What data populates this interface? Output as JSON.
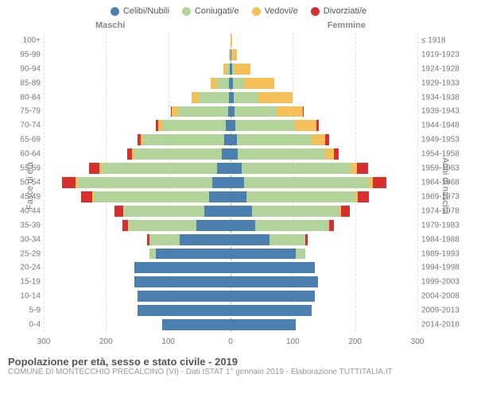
{
  "chart": {
    "type": "population-pyramid",
    "title": "Popolazione per età, sesso e stato civile - 2019",
    "subtitle": "COMUNE DI MONTECCHIO PRECALCINO (VI) - Dati ISTAT 1° gennaio 2019 - Elaborazione TUTTITALIA.IT",
    "male_label": "Maschi",
    "female_label": "Femmine",
    "y_title_left": "Fasce di età",
    "y_title_right": "Anni di nascita",
    "x_max": 300,
    "x_ticks": [
      300,
      200,
      100,
      0,
      100,
      200,
      300
    ],
    "legend": [
      {
        "label": "Celibi/Nubili",
        "color": "#4a7fb0"
      },
      {
        "label": "Coniugati/e",
        "color": "#b2d49a"
      },
      {
        "label": "Vedovi/e",
        "color": "#f5c05a"
      },
      {
        "label": "Divorziati/e",
        "color": "#d92e2e"
      }
    ],
    "colors": {
      "single": "#4a7fb0",
      "married": "#b2d49a",
      "widowed": "#f5c05a",
      "divorced": "#d92e2e",
      "background": "#ffffff",
      "grid": "#e0e0e0",
      "text": "#777777"
    },
    "age_labels": [
      "0-4",
      "5-9",
      "10-14",
      "15-19",
      "20-24",
      "25-29",
      "30-34",
      "35-39",
      "40-44",
      "45-49",
      "50-54",
      "55-59",
      "60-64",
      "65-69",
      "70-74",
      "75-79",
      "80-84",
      "85-89",
      "90-94",
      "95-99",
      "100+"
    ],
    "birth_labels": [
      "2014-2018",
      "2009-2013",
      "2004-2008",
      "1999-2003",
      "1994-1998",
      "1989-1993",
      "1984-1988",
      "1979-1983",
      "1974-1978",
      "1969-1973",
      "1964-1968",
      "1959-1963",
      "1954-1958",
      "1949-1953",
      "1944-1948",
      "1939-1943",
      "1934-1938",
      "1929-1933",
      "1924-1928",
      "1919-1923",
      "≤ 1918"
    ],
    "rows": [
      {
        "m": [
          110,
          0,
          0,
          0
        ],
        "f": [
          105,
          0,
          0,
          0
        ]
      },
      {
        "m": [
          150,
          0,
          0,
          0
        ],
        "f": [
          130,
          0,
          0,
          0
        ]
      },
      {
        "m": [
          150,
          0,
          0,
          0
        ],
        "f": [
          135,
          0,
          0,
          0
        ]
      },
      {
        "m": [
          155,
          0,
          0,
          0
        ],
        "f": [
          140,
          0,
          0,
          0
        ]
      },
      {
        "m": [
          155,
          0,
          0,
          0
        ],
        "f": [
          135,
          0,
          0,
          0
        ]
      },
      {
        "m": [
          120,
          10,
          0,
          0
        ],
        "f": [
          105,
          15,
          0,
          0
        ]
      },
      {
        "m": [
          82,
          48,
          0,
          4
        ],
        "f": [
          62,
          58,
          0,
          4
        ]
      },
      {
        "m": [
          55,
          110,
          0,
          8
        ],
        "f": [
          40,
          118,
          0,
          8
        ]
      },
      {
        "m": [
          42,
          130,
          0,
          14
        ],
        "f": [
          35,
          140,
          2,
          14
        ]
      },
      {
        "m": [
          35,
          185,
          2,
          18
        ],
        "f": [
          25,
          175,
          4,
          18
        ]
      },
      {
        "m": [
          30,
          215,
          4,
          22
        ],
        "f": [
          22,
          200,
          6,
          22
        ]
      },
      {
        "m": [
          22,
          185,
          4,
          16
        ],
        "f": [
          18,
          175,
          10,
          18
        ]
      },
      {
        "m": [
          14,
          140,
          4,
          8
        ],
        "f": [
          12,
          140,
          14,
          8
        ]
      },
      {
        "m": [
          10,
          130,
          4,
          6
        ],
        "f": [
          10,
          120,
          22,
          6
        ]
      },
      {
        "m": [
          8,
          102,
          6,
          4
        ],
        "f": [
          8,
          95,
          35,
          4
        ]
      },
      {
        "m": [
          4,
          80,
          10,
          2
        ],
        "f": [
          6,
          68,
          42,
          2
        ]
      },
      {
        "m": [
          3,
          48,
          12,
          0
        ],
        "f": [
          5,
          40,
          55,
          0
        ]
      },
      {
        "m": [
          2,
          20,
          10,
          0
        ],
        "f": [
          4,
          18,
          48,
          0
        ]
      },
      {
        "m": [
          1,
          4,
          6,
          0
        ],
        "f": [
          2,
          5,
          25,
          0
        ]
      },
      {
        "m": [
          0,
          1,
          2,
          0
        ],
        "f": [
          1,
          1,
          8,
          0
        ]
      },
      {
        "m": [
          0,
          0,
          0,
          0
        ],
        "f": [
          0,
          0,
          2,
          0
        ]
      }
    ]
  }
}
